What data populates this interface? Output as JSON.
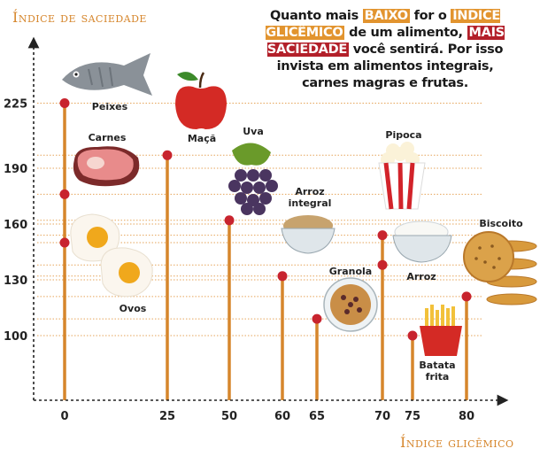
{
  "headline": {
    "part1": "Quanto mais ",
    "baixo": "BAIXO",
    "part2": " for o ",
    "indice": "ÍNDICE GLICÊMICO",
    "part3": " de um alimento, ",
    "mais_saciedade": "MAIS SACIEDADE",
    "part4": " você sentirá. Por isso invista em alimentos integrais, carnes magras e frutas."
  },
  "colors": {
    "stem": "#d6862c",
    "dot": "#c8242e",
    "grid": "#e6a55b",
    "axis": "#222222",
    "highlight_orange": "#e2942f",
    "highlight_red": "#b3202a"
  },
  "chart_data": {
    "type": "scatter",
    "xlabel": "Índice glicêmico",
    "ylabel": "Índice de saciedade",
    "x_ticks": [
      0,
      25,
      50,
      60,
      65,
      70,
      75,
      80
    ],
    "y_ticks": [
      100,
      130,
      160,
      190,
      225
    ],
    "grid": "dotted horizontal",
    "points": [
      {
        "name": "Peixes",
        "x": 0,
        "y": 225,
        "icon": "fish-icon"
      },
      {
        "name": "Carnes",
        "x": 0,
        "y": 176,
        "icon": "steak-icon"
      },
      {
        "name": "Ovos",
        "x": 0,
        "y": 150,
        "icon": "eggs-icon"
      },
      {
        "name": "Maçã",
        "x": 25,
        "y": 197,
        "icon": "apple-icon"
      },
      {
        "name": "Uva",
        "x": 50,
        "y": 162,
        "icon": "grapes-icon"
      },
      {
        "name": "Arroz integral",
        "x": 60,
        "y": 132,
        "icon": "rice-bowl-icon"
      },
      {
        "name": "Granola",
        "x": 65,
        "y": 109,
        "icon": "granola-bowl-icon"
      },
      {
        "name": "Pipoca",
        "x": 70,
        "y": 154,
        "icon": "popcorn-icon"
      },
      {
        "name": "Arroz",
        "x": 70,
        "y": 138,
        "icon": "white-rice-bowl-icon"
      },
      {
        "name": "Batata frita",
        "x": 75,
        "y": 100,
        "icon": "fries-icon"
      },
      {
        "name": "Biscoito",
        "x": 80,
        "y": 121,
        "icon": "cookie-icon"
      }
    ]
  }
}
